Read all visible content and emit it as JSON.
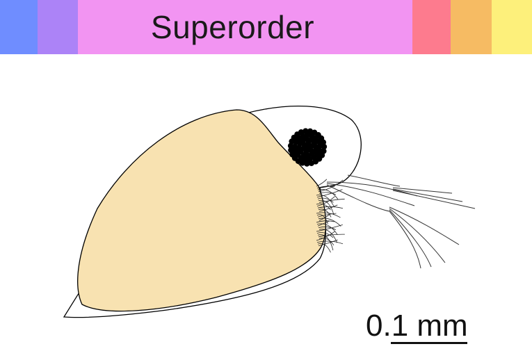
{
  "header": {
    "title": "Superorder",
    "bands": [
      {
        "name": "band-1",
        "color": "#6f8dff",
        "width": 54
      },
      {
        "name": "band-2",
        "color": "#ac83f7",
        "width": 58
      },
      {
        "name": "band-title",
        "color": "#f294f2",
        "flex": true
      },
      {
        "name": "band-4",
        "color": "#fd7b8e",
        "width": 55
      },
      {
        "name": "band-5",
        "color": "#f6bb63",
        "width": 59
      },
      {
        "name": "band-6",
        "color": "#fdf07b",
        "width": 58
      }
    ]
  },
  "illustration": {
    "subject": "",
    "body_fill": "#f8e2b1",
    "outline": "#000000",
    "eye_fill": "#000000"
  },
  "scale_bar": {
    "label": "0.1 mm"
  }
}
